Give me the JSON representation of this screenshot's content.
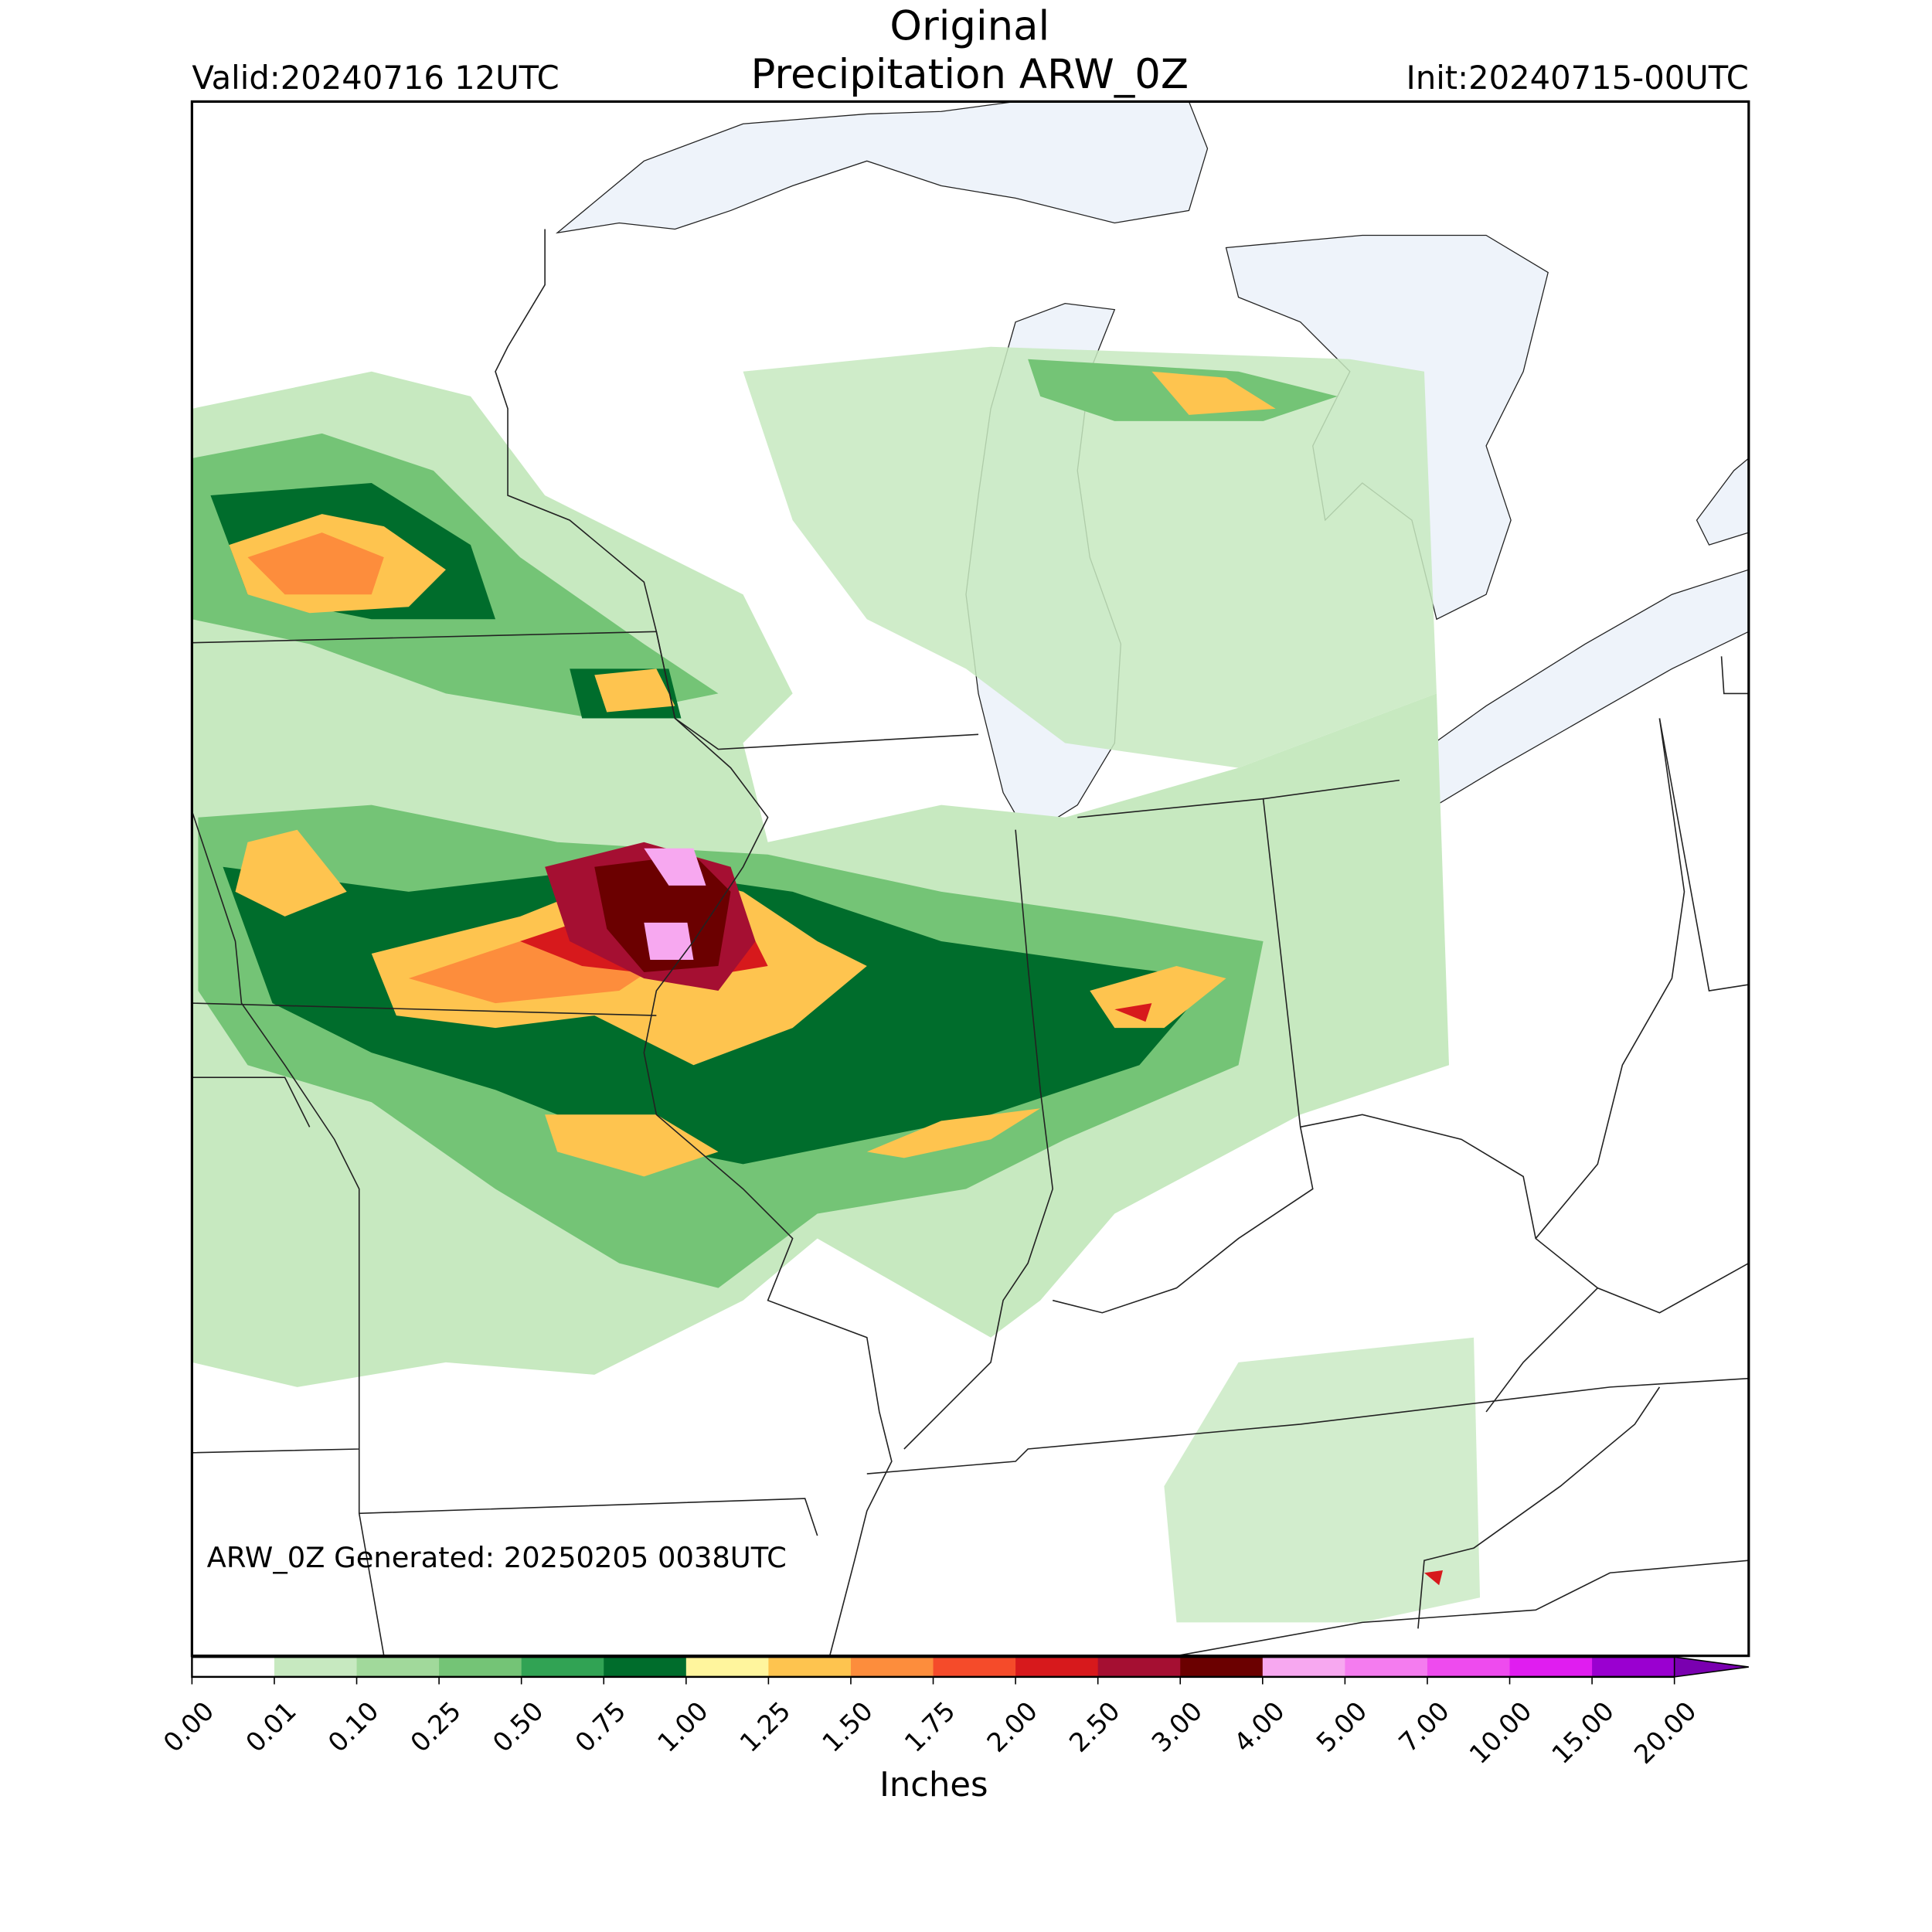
{
  "header": {
    "title": "Original",
    "subtitle": "Precipitation ARW_0Z",
    "valid": "Valid:20240716 12UTC",
    "init": "Init:20240715-00UTC"
  },
  "map": {
    "annotation": "ARW_0Z Generated: 20250205 0038UTC"
  },
  "colorbar": {
    "label": "Inches",
    "ticks": [
      "0.00",
      "0.01",
      "0.10",
      "0.25",
      "0.50",
      "0.75",
      "1.00",
      "1.25",
      "1.50",
      "1.75",
      "2.00",
      "2.50",
      "3.00",
      "4.00",
      "5.00",
      "7.00",
      "10.00",
      "15.00",
      "20.00"
    ],
    "colors": [
      "#ffffff",
      "#c7e9c0",
      "#a1d99b",
      "#74c476",
      "#31a354",
      "#006d2c",
      "#fff59d",
      "#fec44f",
      "#fd8d3c",
      "#f54b2a",
      "#d7191c",
      "#a50f32",
      "#6b0000",
      "#f7a8f0",
      "#f47cef",
      "#ee4bee",
      "#e01df0",
      "#9a00d0"
    ],
    "extend_color": "#7a00b0"
  }
}
